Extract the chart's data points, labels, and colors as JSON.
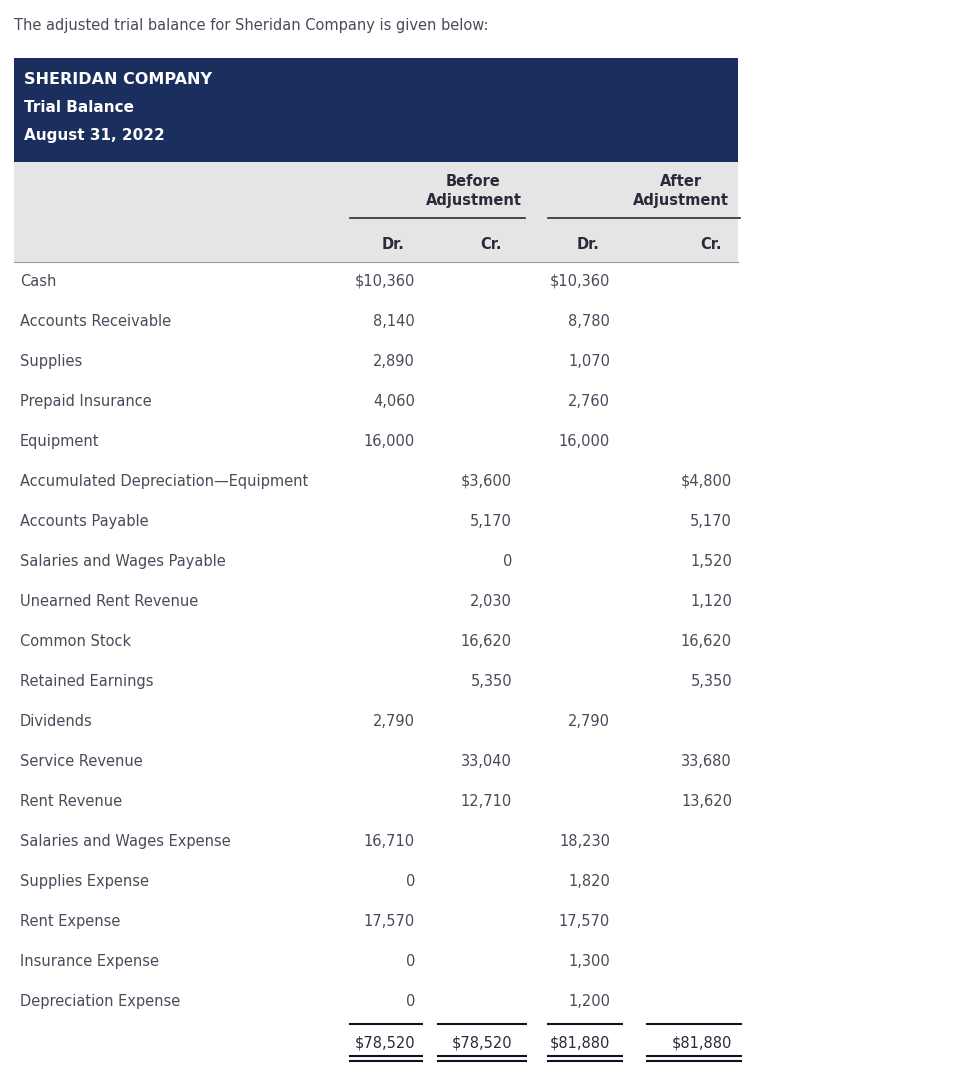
{
  "intro_text": "The adjusted trial balance for Sheridan Company is given below:",
  "company_name": "SHERIDAN COMPANY",
  "report_title": "Trial Balance",
  "report_date": "August 31, 2022",
  "header_bg_color": "#1b2f5e",
  "header_text_color": "#ffffff",
  "subheader_bg_color": "#e5e5e5",
  "text_color": "#4a4a5a",
  "dark_text_color": "#2a2a3a",
  "col_dr_cr": [
    "Dr.",
    "Cr.",
    "Dr.",
    "Cr."
  ],
  "rows": [
    {
      "label": "Cash",
      "bd": "$10,360",
      "bc": "",
      "ad": "$10,360",
      "ac": ""
    },
    {
      "label": "Accounts Receivable",
      "bd": "8,140",
      "bc": "",
      "ad": "8,780",
      "ac": ""
    },
    {
      "label": "Supplies",
      "bd": "2,890",
      "bc": "",
      "ad": "1,070",
      "ac": ""
    },
    {
      "label": "Prepaid Insurance",
      "bd": "4,060",
      "bc": "",
      "ad": "2,760",
      "ac": ""
    },
    {
      "label": "Equipment",
      "bd": "16,000",
      "bc": "",
      "ad": "16,000",
      "ac": ""
    },
    {
      "label": "Accumulated Depreciation—Equipment",
      "bd": "",
      "bc": "$3,600",
      "ad": "",
      "ac": "$4,800"
    },
    {
      "label": "Accounts Payable",
      "bd": "",
      "bc": "5,170",
      "ad": "",
      "ac": "5,170"
    },
    {
      "label": "Salaries and Wages Payable",
      "bd": "",
      "bc": "0",
      "ad": "",
      "ac": "1,520"
    },
    {
      "label": "Unearned Rent Revenue",
      "bd": "",
      "bc": "2,030",
      "ad": "",
      "ac": "1,120"
    },
    {
      "label": "Common Stock",
      "bd": "",
      "bc": "16,620",
      "ad": "",
      "ac": "16,620"
    },
    {
      "label": "Retained Earnings",
      "bd": "",
      "bc": "5,350",
      "ad": "",
      "ac": "5,350"
    },
    {
      "label": "Dividends",
      "bd": "2,790",
      "bc": "",
      "ad": "2,790",
      "ac": ""
    },
    {
      "label": "Service Revenue",
      "bd": "",
      "bc": "33,040",
      "ad": "",
      "ac": "33,680"
    },
    {
      "label": "Rent Revenue",
      "bd": "",
      "bc": "12,710",
      "ad": "",
      "ac": "13,620"
    },
    {
      "label": "Salaries and Wages Expense",
      "bd": "16,710",
      "bc": "",
      "ad": "18,230",
      "ac": ""
    },
    {
      "label": "Supplies Expense",
      "bd": "0",
      "bc": "",
      "ad": "1,820",
      "ac": ""
    },
    {
      "label": "Rent Expense",
      "bd": "17,570",
      "bc": "",
      "ad": "17,570",
      "ac": ""
    },
    {
      "label": "Insurance Expense",
      "bd": "0",
      "bc": "",
      "ad": "1,300",
      "ac": ""
    },
    {
      "label": "Depreciation Expense",
      "bd": "0",
      "bc": "",
      "ad": "1,200",
      "ac": ""
    }
  ],
  "totals": {
    "bd": "$78,520",
    "bc": "$78,520",
    "ad": "$81,880",
    "ac": "$81,880"
  },
  "fig_width": 9.54,
  "fig_height": 10.9,
  "dpi": 100
}
